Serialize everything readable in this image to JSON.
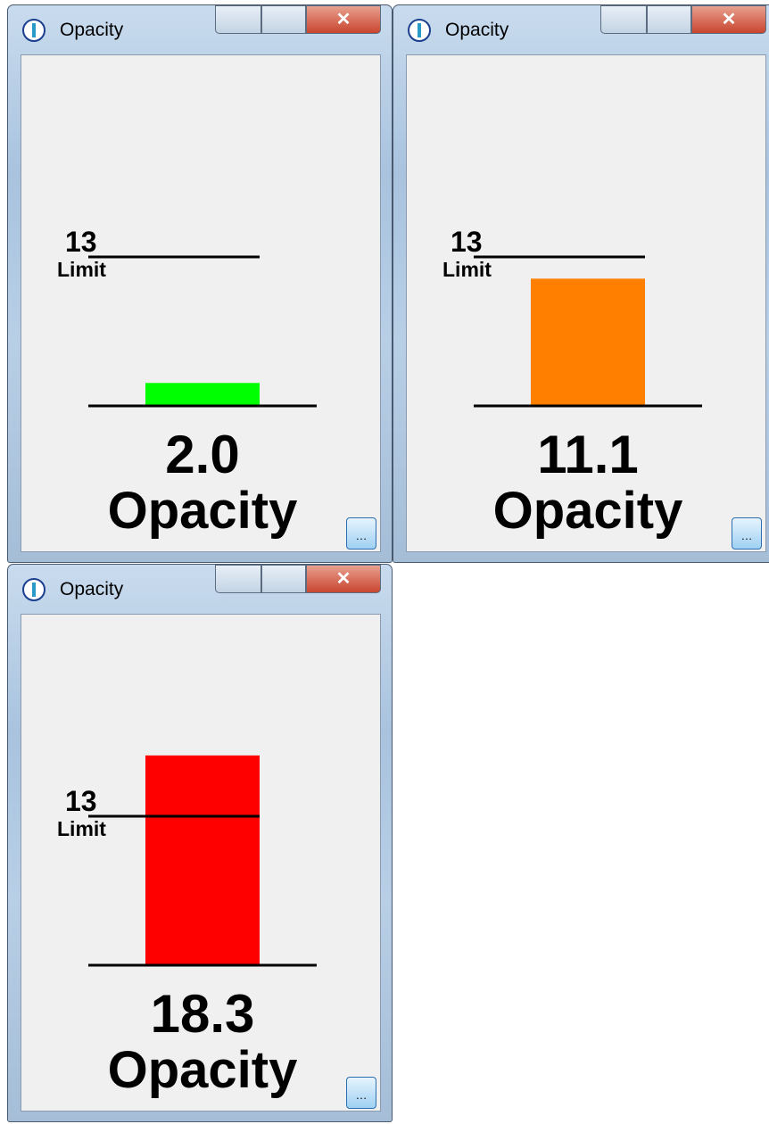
{
  "windows": [
    {
      "title": "Opacity",
      "chart": {
        "type": "bar",
        "value": 2.0,
        "value_label": "2.0",
        "label": "Opacity",
        "limit": 13,
        "limit_label": "Limit",
        "color": "#00ff00"
      }
    },
    {
      "title": "Opacity",
      "chart": {
        "type": "bar",
        "value": 11.1,
        "value_label": "11.1",
        "label": "Opacity",
        "limit": 13,
        "limit_label": "Limit",
        "color": "#ff8000"
      }
    },
    {
      "title": "Opacity",
      "chart": {
        "type": "bar",
        "value": 18.3,
        "value_label": "18.3",
        "label": "Opacity",
        "limit": 13,
        "limit_label": "Limit",
        "color": "#ff0000"
      }
    }
  ]
}
